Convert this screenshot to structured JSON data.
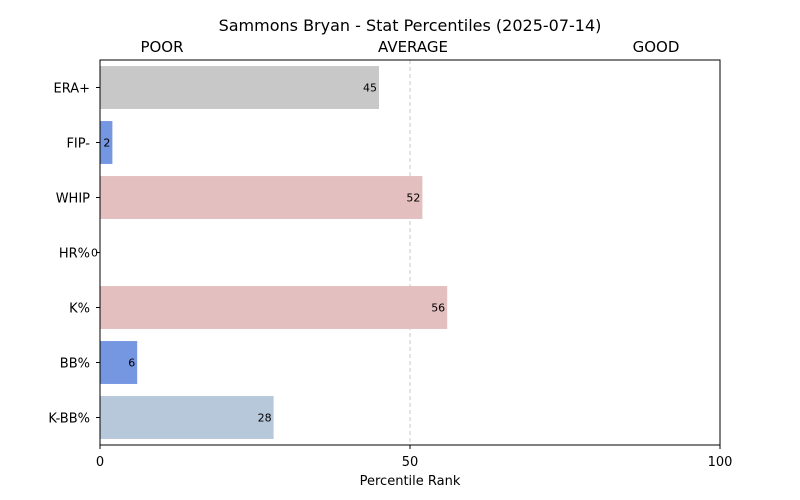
{
  "chart_data": {
    "type": "bar",
    "orientation": "horizontal",
    "title": "Sammons Bryan - Stat Percentiles (2025-07-14)",
    "band_labels": [
      "POOR",
      "AVERAGE",
      "GOOD"
    ],
    "categories": [
      "ERA+",
      "FIP-",
      "WHIP",
      "HR%",
      "K%",
      "BB%",
      "K-BB%"
    ],
    "values": [
      45,
      2,
      52,
      0,
      56,
      6,
      28
    ],
    "bar_colors": [
      "#c8c8c8",
      "#7596e0",
      "#e3bfbf",
      "#dcdcdc",
      "#e3bfbf",
      "#7596e0",
      "#b7c8da"
    ],
    "xlabel": "Percentile Rank",
    "ylabel": "",
    "xlim": [
      0,
      100
    ],
    "xticks": [
      0,
      50,
      100
    ],
    "reference_line": 50,
    "grid": false,
    "legend": "none"
  }
}
